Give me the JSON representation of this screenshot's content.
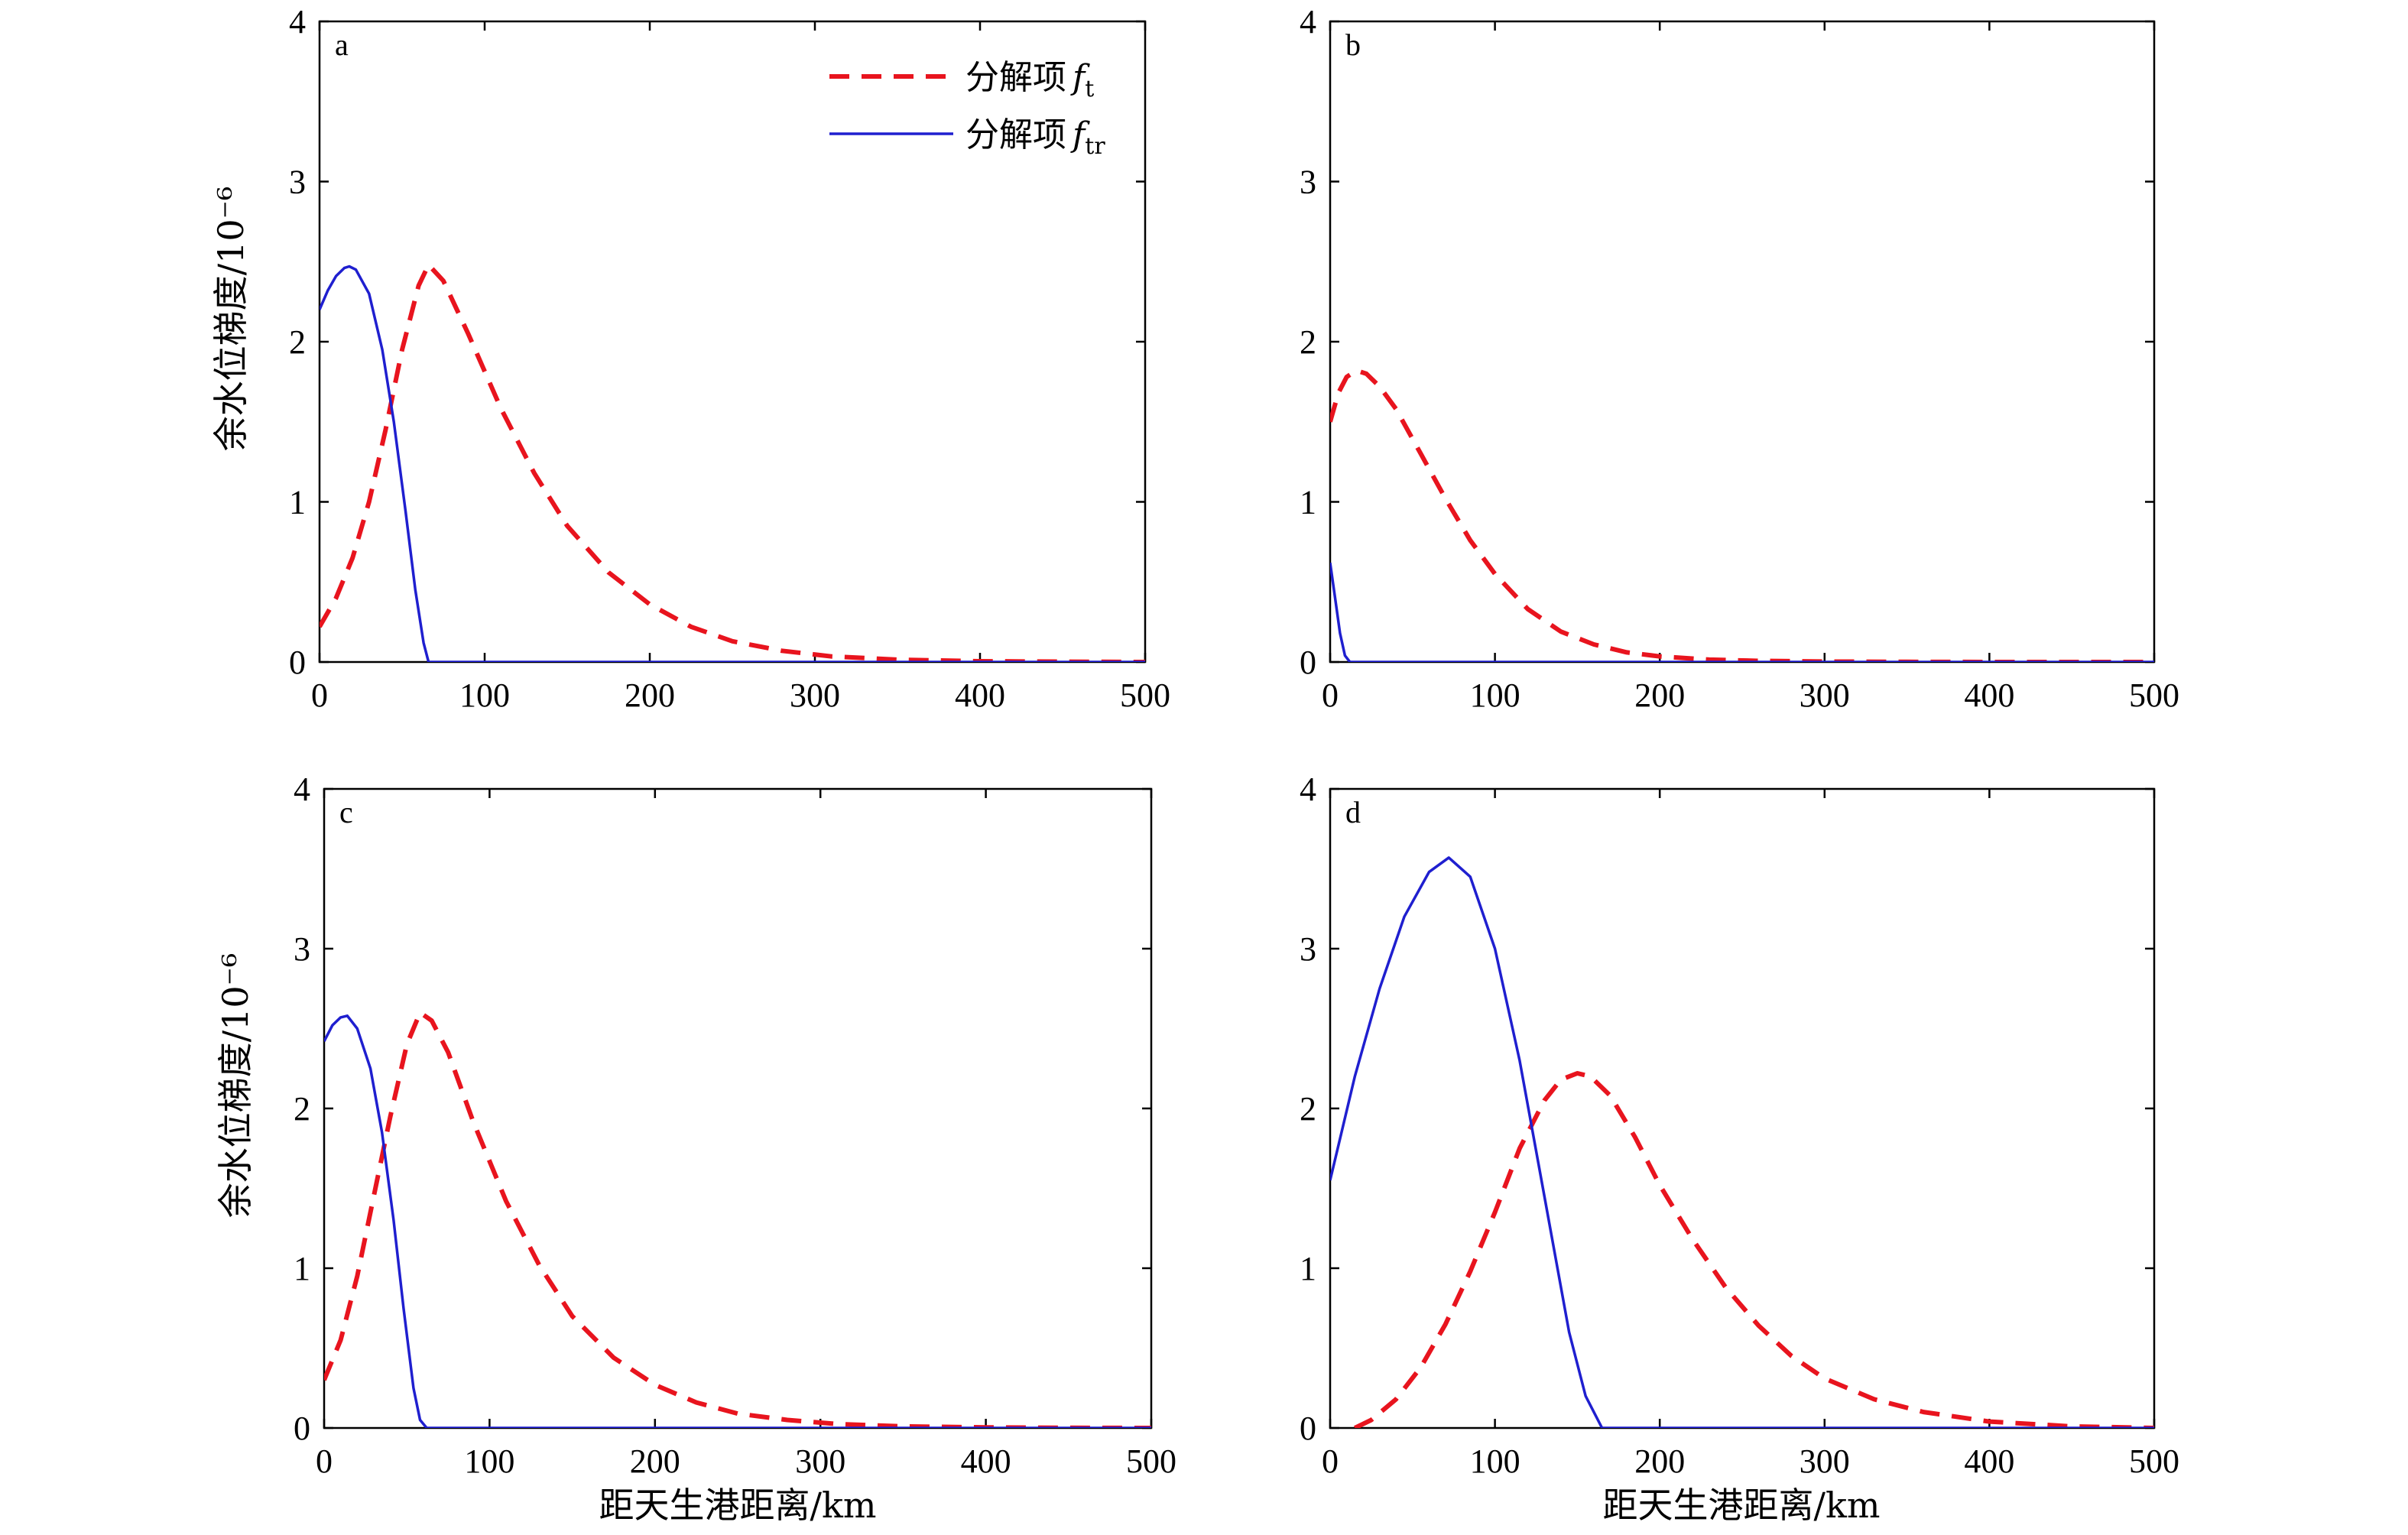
{
  "colors": {
    "dashed_series": "#e8141e",
    "solid_series": "#1f1fcf",
    "axis": "#000000"
  },
  "legend": {
    "items": [
      {
        "key": "ft",
        "text": "分解项",
        "sym": "f",
        "sub": "t",
        "style": "dashed"
      },
      {
        "key": "ftr",
        "text": "分解项",
        "sym": "f",
        "sub": "tr",
        "style": "solid"
      }
    ]
  },
  "chart_data": [
    {
      "type": "line",
      "panel": "a",
      "xlabel": "",
      "ylabel": "余水位梯度/10⁻⁶",
      "xlim": [
        0,
        500
      ],
      "ylim": [
        0,
        4
      ],
      "xticks": [
        0,
        100,
        200,
        300,
        400,
        500
      ],
      "yticks": [
        0,
        1,
        2,
        3,
        4
      ],
      "series": [
        {
          "key": "ft",
          "x": [
            0,
            10,
            20,
            30,
            40,
            50,
            60,
            66,
            75,
            90,
            110,
            130,
            150,
            175,
            200,
            225,
            250,
            280,
            310,
            350,
            400,
            450,
            500
          ],
          "y": [
            0.22,
            0.4,
            0.65,
            1.0,
            1.45,
            1.95,
            2.35,
            2.48,
            2.38,
            2.05,
            1.58,
            1.18,
            0.85,
            0.56,
            0.36,
            0.22,
            0.13,
            0.07,
            0.035,
            0.015,
            0.005,
            0.002,
            0.0
          ]
        },
        {
          "key": "ftr",
          "x": [
            0,
            5,
            10,
            15,
            18,
            22,
            30,
            38,
            45,
            52,
            58,
            63,
            66,
            70,
            100,
            200,
            300,
            400,
            500
          ],
          "y": [
            2.2,
            2.32,
            2.41,
            2.46,
            2.47,
            2.45,
            2.3,
            1.95,
            1.5,
            0.95,
            0.45,
            0.12,
            0.0,
            0.0,
            0.0,
            0.0,
            0.0,
            0.0,
            0.0
          ]
        }
      ]
    },
    {
      "type": "line",
      "panel": "b",
      "xlabel": "",
      "ylabel": "",
      "xlim": [
        0,
        500
      ],
      "ylim": [
        0,
        4
      ],
      "xticks": [
        0,
        100,
        200,
        300,
        400,
        500
      ],
      "yticks": [
        0,
        1,
        2,
        3,
        4
      ],
      "series": [
        {
          "key": "ft",
          "x": [
            0,
            5,
            10,
            16,
            22,
            30,
            40,
            55,
            70,
            85,
            100,
            120,
            140,
            160,
            180,
            200,
            230,
            260,
            300,
            350,
            400,
            450,
            500
          ],
          "y": [
            1.5,
            1.68,
            1.78,
            1.82,
            1.8,
            1.72,
            1.58,
            1.3,
            1.02,
            0.76,
            0.55,
            0.33,
            0.19,
            0.11,
            0.06,
            0.035,
            0.015,
            0.007,
            0.003,
            0.001,
            0.0,
            0.0,
            0.0
          ]
        },
        {
          "key": "ftr",
          "x": [
            0,
            3,
            6,
            9,
            12,
            20,
            100,
            200,
            300,
            400,
            500
          ],
          "y": [
            0.62,
            0.4,
            0.18,
            0.04,
            0.0,
            0.0,
            0.0,
            0.0,
            0.0,
            0.0,
            0.0
          ]
        }
      ]
    },
    {
      "type": "line",
      "panel": "c",
      "xlabel": "",
      "ylabel": "余水位梯度/10⁻⁶",
      "xlim": [
        0,
        500
      ],
      "ylim": [
        0,
        4
      ],
      "xticks": [
        0,
        100,
        200,
        300,
        400,
        500
      ],
      "yticks": [
        0,
        1,
        2,
        3,
        4
      ],
      "series": [
        {
          "key": "ft",
          "x": [
            0,
            10,
            20,
            30,
            40,
            50,
            58,
            65,
            75,
            90,
            110,
            130,
            150,
            175,
            200,
            225,
            250,
            280,
            310,
            350,
            400,
            450,
            500
          ],
          "y": [
            0.3,
            0.55,
            0.95,
            1.45,
            1.95,
            2.4,
            2.6,
            2.55,
            2.35,
            1.92,
            1.42,
            1.02,
            0.7,
            0.44,
            0.27,
            0.16,
            0.09,
            0.05,
            0.025,
            0.01,
            0.004,
            0.001,
            0.0
          ]
        },
        {
          "key": "ftr",
          "x": [
            0,
            5,
            10,
            14,
            20,
            28,
            35,
            42,
            48,
            54,
            58,
            62,
            100,
            200,
            300,
            400,
            500
          ],
          "y": [
            2.42,
            2.52,
            2.57,
            2.58,
            2.5,
            2.25,
            1.85,
            1.3,
            0.75,
            0.25,
            0.05,
            0.0,
            0.0,
            0.0,
            0.0,
            0.0,
            0.0
          ]
        }
      ]
    },
    {
      "type": "line",
      "panel": "d",
      "xlabel": "距天生港距离/km",
      "ylabel": "",
      "xlim": [
        0,
        500
      ],
      "ylim": [
        0,
        4
      ],
      "xticks": [
        0,
        100,
        200,
        300,
        400,
        500
      ],
      "yticks": [
        0,
        1,
        2,
        3,
        4
      ],
      "series": [
        {
          "key": "ft",
          "x": [
            15,
            25,
            40,
            55,
            70,
            85,
            100,
            115,
            130,
            140,
            150,
            158,
            170,
            185,
            200,
            220,
            240,
            260,
            280,
            300,
            330,
            360,
            400,
            450,
            500
          ],
          "y": [
            0.0,
            0.05,
            0.18,
            0.38,
            0.65,
            0.98,
            1.35,
            1.75,
            2.05,
            2.18,
            2.22,
            2.2,
            2.08,
            1.82,
            1.52,
            1.18,
            0.88,
            0.64,
            0.45,
            0.31,
            0.18,
            0.1,
            0.04,
            0.01,
            0.0
          ]
        },
        {
          "key": "ftr",
          "x": [
            0,
            15,
            30,
            45,
            60,
            72,
            85,
            100,
            115,
            130,
            145,
            155,
            165,
            200,
            300,
            400,
            500
          ],
          "y": [
            1.55,
            2.2,
            2.75,
            3.2,
            3.48,
            3.57,
            3.45,
            3.0,
            2.3,
            1.45,
            0.6,
            0.2,
            0.0,
            0.0,
            0.0,
            0.0,
            0.0
          ]
        }
      ]
    }
  ]
}
